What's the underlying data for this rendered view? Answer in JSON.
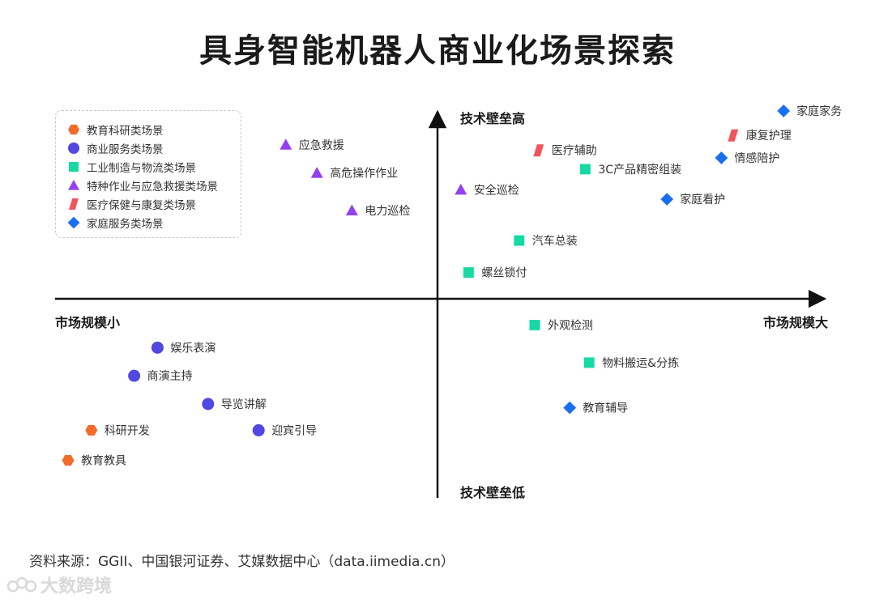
{
  "chart_data": {
    "type": "scatter",
    "title": "具身智能机器人商业化场景探索",
    "x_axis": {
      "label_left": "市场规模小",
      "label_right": "市场规模大",
      "range": [
        -10,
        10
      ]
    },
    "y_axis": {
      "label_top": "技术壁垒高",
      "label_bottom": "技术壁垒低",
      "range": [
        -10,
        10
      ]
    },
    "grid": false,
    "legend_position": "top-left",
    "categories": [
      {
        "id": "edu",
        "name": "教育科研类场景",
        "shape": "hexagon",
        "color": "#F26B2A"
      },
      {
        "id": "biz",
        "name": "商业服务类场景",
        "shape": "circle",
        "color": "#5048E0"
      },
      {
        "id": "ind",
        "name": "工业制造与物流类场景",
        "shape": "square",
        "color": "#17D9A3"
      },
      {
        "id": "emg",
        "name": "特种作业与应急救援类场景",
        "shape": "triangle",
        "color": "#9440F0"
      },
      {
        "id": "med",
        "name": "医疗保健与康复类场景",
        "shape": "parallelogram",
        "color": "#F0545C"
      },
      {
        "id": "home",
        "name": "家庭服务类场景",
        "shape": "diamond",
        "color": "#1A6FF0"
      }
    ],
    "points": [
      {
        "label": "教育教具",
        "category": "edu",
        "x": -9.5,
        "y": -8.6
      },
      {
        "label": "科研开发",
        "category": "edu",
        "x": -8.9,
        "y": -7.0
      },
      {
        "label": "娱乐表演",
        "category": "biz",
        "x": -7.2,
        "y": -2.6
      },
      {
        "label": "商演主持",
        "category": "biz",
        "x": -7.8,
        "y": -4.1
      },
      {
        "label": "导览讲解",
        "category": "biz",
        "x": -5.9,
        "y": -5.6
      },
      {
        "label": "迎宾引导",
        "category": "biz",
        "x": -4.6,
        "y": -7.0
      },
      {
        "label": "应急救援",
        "category": "emg",
        "x": -3.9,
        "y": 8.2
      },
      {
        "label": "高危操作作业",
        "category": "emg",
        "x": -3.1,
        "y": 6.7
      },
      {
        "label": "电力巡检",
        "category": "emg",
        "x": -2.2,
        "y": 4.7
      },
      {
        "label": "安全巡检",
        "category": "emg",
        "x": 0.6,
        "y": 5.8
      },
      {
        "label": "医疗辅助",
        "category": "med",
        "x": 2.6,
        "y": 7.9
      },
      {
        "label": "康复护理",
        "category": "med",
        "x": 7.6,
        "y": 8.7
      },
      {
        "label": "3C产品精密组装",
        "category": "ind",
        "x": 3.8,
        "y": 6.9
      },
      {
        "label": "汽车总装",
        "category": "ind",
        "x": 2.1,
        "y": 3.1
      },
      {
        "label": "螺丝锁付",
        "category": "ind",
        "x": 0.8,
        "y": 1.4
      },
      {
        "label": "外观检测",
        "category": "ind",
        "x": 2.5,
        "y": -1.4
      },
      {
        "label": "物料搬运&分拣",
        "category": "ind",
        "x": 3.9,
        "y": -3.4
      },
      {
        "label": "家庭家务",
        "category": "home",
        "x": 8.9,
        "y": 10.0
      },
      {
        "label": "情感陪护",
        "category": "home",
        "x": 7.3,
        "y": 7.5
      },
      {
        "label": "家庭看护",
        "category": "home",
        "x": 5.9,
        "y": 5.3
      },
      {
        "label": "教育辅导",
        "category": "home",
        "x": 3.4,
        "y": -5.8
      }
    ]
  },
  "source_text": "资料来源：GGII、中国银河证券、艾媒数据中心（data.iimedia.cn）",
  "watermark_text": "大数跨境"
}
